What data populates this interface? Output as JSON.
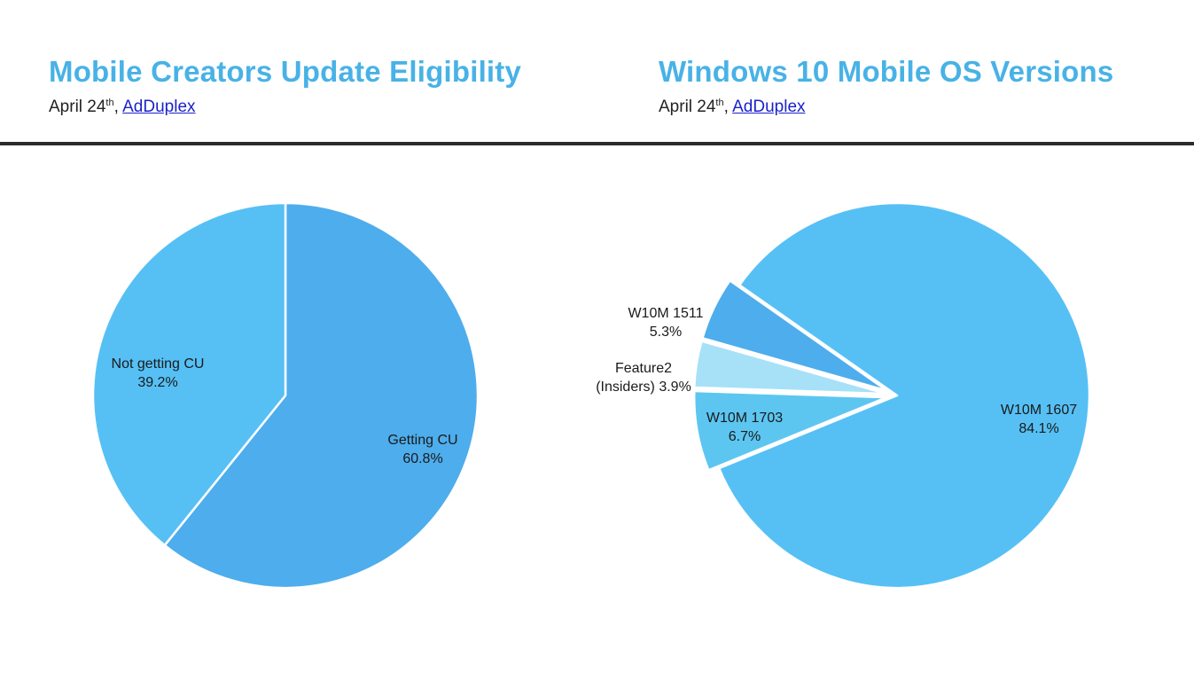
{
  "left": {
    "title": "Mobile Creators Update Eligibility",
    "date": "April 24",
    "date_suffix": "th",
    "separator": ",",
    "source": "AdDuplex"
  },
  "right": {
    "title": "Windows 10 Mobile OS Versions",
    "date": "April 24",
    "date_suffix": "th",
    "separator": ",",
    "source": "AdDuplex"
  },
  "colors": {
    "title": "#48b2e6",
    "rule": "#2b2b2b",
    "link": "#1a22c8"
  },
  "chart_data": [
    {
      "type": "pie",
      "title": "Mobile Creators Update Eligibility",
      "slices": [
        {
          "label": "Getting CU",
          "value": 60.8,
          "value_label": "60.8%",
          "color": "#4eadec"
        },
        {
          "label": "Not getting CU",
          "value": 39.2,
          "value_label": "39.2%",
          "color": "#56c0f5"
        }
      ]
    },
    {
      "type": "pie",
      "title": "Windows 10 Mobile OS Versions",
      "slices": [
        {
          "label": "W10M 1607",
          "value": 84.1,
          "value_label": "84.1%",
          "color": "#56c0f5"
        },
        {
          "label": "W10M 1703",
          "value": 6.7,
          "value_label": "6.7%",
          "color": "#5cc6f1"
        },
        {
          "label": "Feature2",
          "label2": "(Insiders)",
          "value": 3.9,
          "value_label": "3.9%",
          "color": "#a6e1f8"
        },
        {
          "label": "W10M 1511",
          "value": 5.3,
          "value_label": "5.3%",
          "color": "#4eadec"
        }
      ]
    }
  ]
}
